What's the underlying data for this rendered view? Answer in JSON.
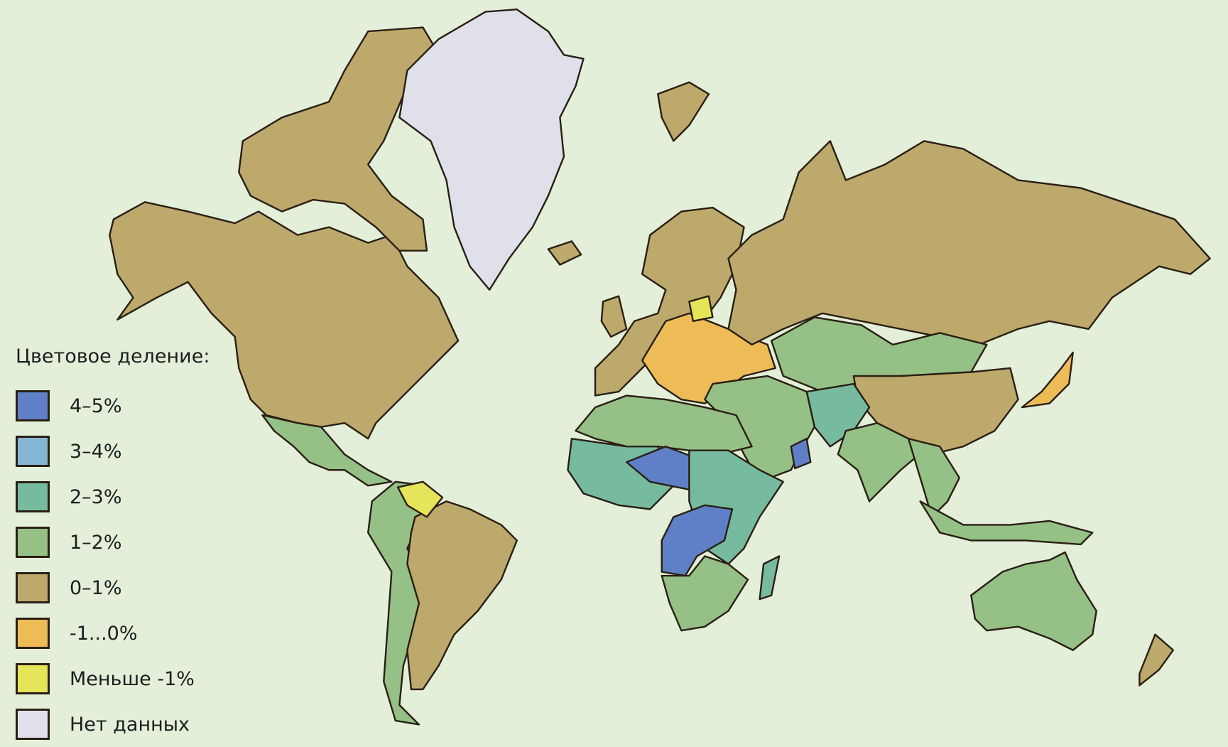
{
  "legend": {
    "title": "Цветовое деление:",
    "items": [
      {
        "label": "4–5%",
        "color": "#5f80c6"
      },
      {
        "label": "3–4%",
        "color": "#84b6d4"
      },
      {
        "label": "2–3%",
        "color": "#76bba0"
      },
      {
        "label": "1–2%",
        "color": "#95c086"
      },
      {
        "label": "0–1%",
        "color": "#bda96b"
      },
      {
        "label": "-1...0%",
        "color": "#eebc57"
      },
      {
        "label": "Меньше -1%",
        "color": "#e6e55a"
      },
      {
        "label": "Нет данных",
        "color": "#dfe0ea"
      }
    ]
  },
  "colors": {
    "background": "#e3efd9",
    "border": "#2a1f14"
  }
}
